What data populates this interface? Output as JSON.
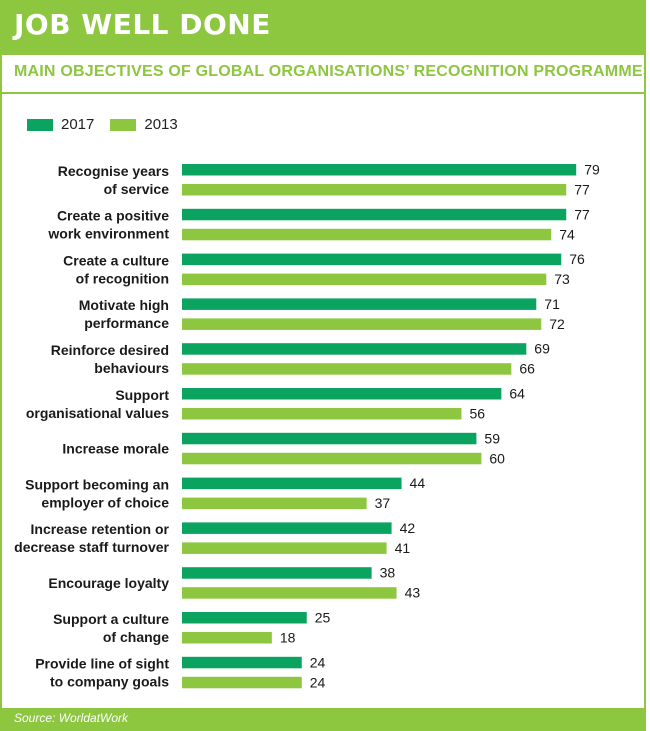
{
  "header": {
    "title": "JOB WELL DONE",
    "subtitle": "MAIN OBJECTIVES OF GLOBAL ORGANISATIONS’ RECOGNITION PROGRAMMES (%)"
  },
  "footer": {
    "source": "Source: WorldatWork"
  },
  "colors": {
    "accent": "#8dc63f",
    "series_2017": "#0aa35f",
    "series_2013": "#8dc63f"
  },
  "chart_data": {
    "type": "bar",
    "orientation": "horizontal",
    "title": "MAIN OBJECTIVES OF GLOBAL ORGANISATIONS’ RECOGNITION PROGRAMMES (%)",
    "categories": [
      [
        "Recognise years",
        "of service"
      ],
      [
        "Create a positive",
        "work environment"
      ],
      [
        "Create a culture",
        "of recognition"
      ],
      [
        "Motivate high",
        "performance"
      ],
      [
        "Reinforce desired",
        "behaviours"
      ],
      [
        "Support",
        "organisational values"
      ],
      [
        "Increase morale"
      ],
      [
        "Support becoming an",
        "employer of choice"
      ],
      [
        "Increase retention or",
        "decrease staff turnover"
      ],
      [
        "Encourage loyalty"
      ],
      [
        "Support a culture",
        "of change"
      ],
      [
        "Provide line of sight",
        "to company goals"
      ]
    ],
    "series": [
      {
        "name": "2017",
        "color": "#0aa35f",
        "values": [
          79,
          77,
          76,
          71,
          69,
          64,
          59,
          44,
          42,
          38,
          25,
          24
        ]
      },
      {
        "name": "2013",
        "color": "#8dc63f",
        "values": [
          77,
          74,
          73,
          72,
          66,
          56,
          60,
          37,
          41,
          43,
          18,
          24
        ]
      }
    ],
    "legend_position": "top-left",
    "grid": false,
    "data_labels": true
  }
}
